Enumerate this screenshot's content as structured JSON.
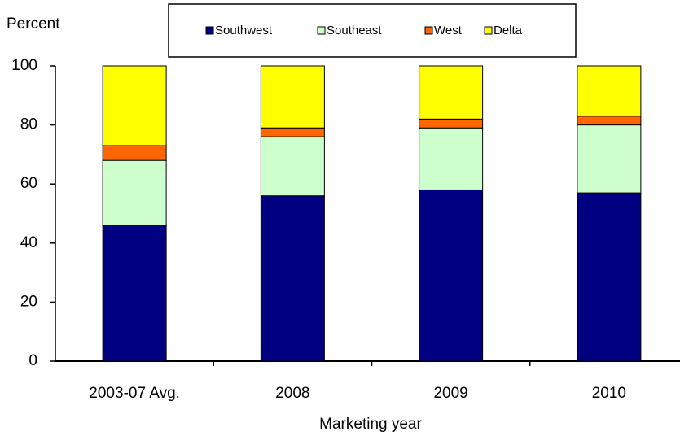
{
  "chart_data": {
    "type": "stacked-bar",
    "y_label": "Percent",
    "x_label": "Marketing year",
    "categories": [
      "2003-07 Avg.",
      "2008",
      "2009",
      "2010"
    ],
    "series": [
      {
        "name": "Southwest",
        "color": "#000080",
        "values": [
          46,
          56,
          58,
          57
        ]
      },
      {
        "name": "Southeast",
        "color": "#ccffcc",
        "values": [
          22,
          20,
          21,
          23
        ]
      },
      {
        "name": "West",
        "color": "#ff6600",
        "values": [
          5,
          3,
          3,
          3
        ]
      },
      {
        "name": "Delta",
        "color": "#ffff00",
        "values": [
          27,
          21,
          18,
          17
        ]
      }
    ],
    "ylim": [
      0,
      100
    ],
    "yticks": [
      0,
      20,
      40,
      60,
      80,
      100
    ],
    "grid": false,
    "legend": "top"
  }
}
